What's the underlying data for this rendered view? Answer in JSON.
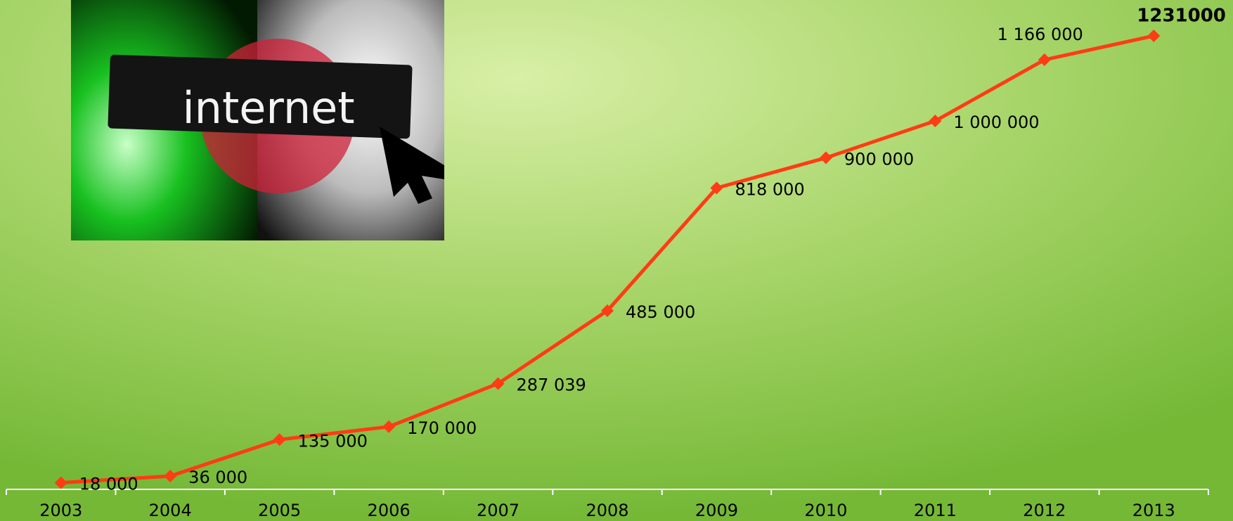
{
  "chart_data": {
    "type": "line",
    "annotations": [
      "internet"
    ],
    "categories": [
      "2003",
      "2004",
      "2005",
      "2006",
      "2007",
      "2008",
      "2009",
      "2010",
      "2011",
      "2012",
      "2013"
    ],
    "series": [
      {
        "color": "#ff3c14",
        "values": [
          18000,
          36000,
          135000,
          170000,
          287039,
          485000,
          818000,
          900000,
          1000000,
          1166000,
          1231000
        ],
        "value_labels": [
          "18 000",
          "36 000",
          "135 000",
          "170 000",
          "287 039",
          "485 000",
          "818 000",
          "900 000",
          "1 000 000",
          "1 166 000",
          "1231000"
        ]
      }
    ]
  }
}
